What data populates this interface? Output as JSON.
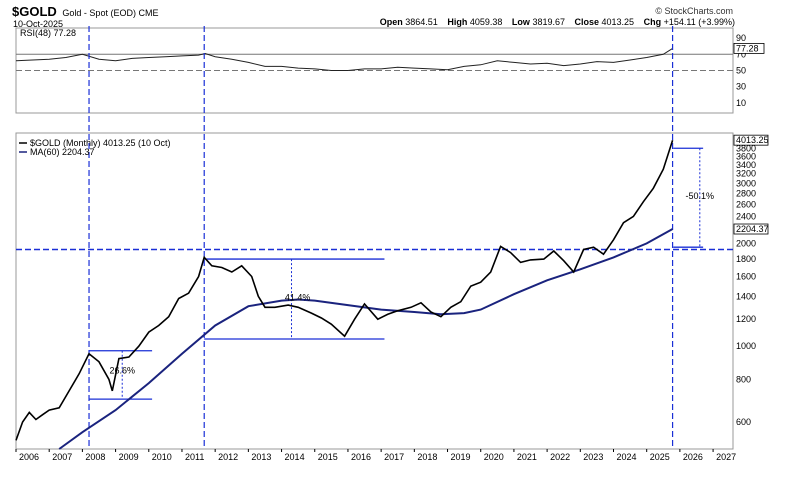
{
  "header": {
    "symbol": "$GOLD",
    "description": "Gold - Spot (EOD) CME",
    "date": "10-Oct-2025",
    "brand": "© StockCharts.com",
    "open_label": "Open",
    "open": "3864.51",
    "high_label": "High",
    "high": "4059.38",
    "low_label": "Low",
    "low": "3819.67",
    "close_label": "Close",
    "close": "4013.25",
    "chg_label": "Chg",
    "chg": "+154.11 (+3.99%)"
  },
  "chart_data": [
    {
      "type": "line",
      "panel": "rsi",
      "legend": "RSI(48) 77.28",
      "last_value": "77.28",
      "ylim": [
        0,
        100
      ],
      "y_ticks": [
        10,
        30,
        50,
        70,
        90
      ],
      "reference_lines": [
        70,
        50
      ],
      "series": [
        {
          "x": [
            2006.0,
            2006.5,
            2007.0,
            2007.5,
            2008.0,
            2008.5,
            2009.0,
            2009.5,
            2010.0,
            2010.5,
            2011.0,
            2011.5,
            2011.7,
            2012.0,
            2012.5,
            2013.0,
            2013.5,
            2014.0,
            2014.5,
            2015.0,
            2015.5,
            2016.0,
            2016.5,
            2017.0,
            2017.5,
            2018.0,
            2018.5,
            2019.0,
            2019.5,
            2020.0,
            2020.5,
            2021.0,
            2021.5,
            2022.0,
            2022.5,
            2023.0,
            2023.5,
            2024.0,
            2024.5,
            2025.0,
            2025.5,
            2025.78
          ],
          "values": [
            62,
            63,
            64,
            66,
            70,
            64,
            62,
            65,
            66,
            67,
            68,
            69,
            71,
            67,
            64,
            60,
            55,
            55,
            53,
            52,
            50,
            50,
            52,
            52,
            54,
            53,
            52,
            51,
            55,
            57,
            62,
            60,
            58,
            59,
            56,
            58,
            61,
            60,
            63,
            66,
            70,
            77.28
          ]
        }
      ]
    },
    {
      "type": "line",
      "panel": "price",
      "title": "$GOLD (Monthly) 4013.25 (10 Oct)",
      "scale": "log",
      "ylim": [
        500,
        4100
      ],
      "y_ticks": [
        600,
        800,
        1000,
        1200,
        1400,
        1600,
        1800,
        2000,
        2200,
        2400,
        2600,
        2800,
        3000,
        3200,
        3400,
        3600,
        3800
      ],
      "x_ticks": [
        "2006",
        "2007",
        "2008",
        "2009",
        "2010",
        "2011",
        "2012",
        "2013",
        "2014",
        "2015",
        "2016",
        "2017",
        "2018",
        "2019",
        "2020",
        "2021",
        "2022",
        "2023",
        "2024",
        "2025",
        "2026",
        "2027"
      ],
      "series": [
        {
          "name": "$GOLD (Monthly) 4013.25 (10 Oct)",
          "last_value": "4013.25",
          "color": "#000000",
          "x": [
            2006.0,
            2006.2,
            2006.4,
            2006.6,
            2006.8,
            2007.0,
            2007.3,
            2007.6,
            2007.9,
            2008.2,
            2008.5,
            2008.8,
            2008.9,
            2009.1,
            2009.4,
            2009.7,
            2010.0,
            2010.3,
            2010.6,
            2010.9,
            2011.2,
            2011.5,
            2011.67,
            2011.9,
            2012.2,
            2012.5,
            2012.8,
            2013.1,
            2013.3,
            2013.5,
            2013.8,
            2014.2,
            2014.5,
            2014.9,
            2015.2,
            2015.5,
            2015.9,
            2016.2,
            2016.5,
            2016.9,
            2017.2,
            2017.5,
            2017.9,
            2018.2,
            2018.5,
            2018.8,
            2019.1,
            2019.4,
            2019.7,
            2020.0,
            2020.3,
            2020.6,
            2020.9,
            2021.2,
            2021.5,
            2021.9,
            2022.2,
            2022.5,
            2022.8,
            2023.1,
            2023.4,
            2023.7,
            2024.0,
            2024.3,
            2024.6,
            2024.9,
            2025.2,
            2025.5,
            2025.78
          ],
          "values": [
            530,
            600,
            640,
            610,
            630,
            650,
            660,
            740,
            830,
            950,
            900,
            800,
            740,
            920,
            930,
            1000,
            1100,
            1150,
            1220,
            1380,
            1430,
            1600,
            1820,
            1720,
            1700,
            1650,
            1720,
            1600,
            1400,
            1300,
            1300,
            1320,
            1300,
            1250,
            1210,
            1160,
            1070,
            1200,
            1330,
            1200,
            1240,
            1270,
            1300,
            1340,
            1260,
            1220,
            1300,
            1350,
            1500,
            1540,
            1650,
            1960,
            1880,
            1760,
            1790,
            1800,
            1900,
            1780,
            1650,
            1920,
            1950,
            1860,
            2050,
            2300,
            2400,
            2650,
            2900,
            3300,
            4013.25
          ]
        },
        {
          "name": "MA(60) 2204.37",
          "last_value": "2204.37",
          "color": "#1a237e",
          "x": [
            2007.3,
            2008.0,
            2009.0,
            2010.0,
            2011.0,
            2012.0,
            2013.0,
            2014.0,
            2014.5,
            2015.0,
            2016.0,
            2017.0,
            2018.0,
            2018.8,
            2019.5,
            2020.0,
            2021.0,
            2022.0,
            2023.0,
            2024.0,
            2025.0,
            2025.78
          ],
          "values": [
            500,
            560,
            650,
            780,
            950,
            1150,
            1310,
            1360,
            1370,
            1360,
            1320,
            1280,
            1260,
            1240,
            1250,
            1280,
            1420,
            1560,
            1680,
            1820,
            2000,
            2204.37
          ]
        }
      ],
      "annotations": [
        "41.4%",
        "26.6%",
        "-50.1%"
      ],
      "reference_lines": [
        {
          "kind": "horizontal-dashed",
          "value": 1920
        },
        {
          "kind": "vertical-dashed",
          "x": 2008.2
        },
        {
          "kind": "vertical-dashed",
          "x": 2011.67
        },
        {
          "kind": "vertical-dashed",
          "x": 2025.78
        }
      ]
    }
  ]
}
